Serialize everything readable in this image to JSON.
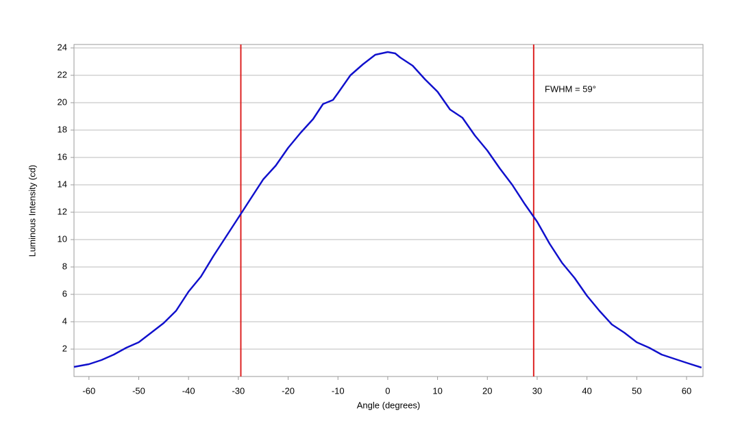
{
  "chart_data": {
    "type": "line",
    "xlabel": "Angle (degrees)",
    "ylabel": "Luminous Intensity (cd)",
    "annotation": "FWHM = 59°",
    "vlines": [
      -29.5,
      29.3
    ],
    "vline_color": "#dd2222",
    "x": [
      -63,
      -60,
      -57.5,
      -55,
      -52.5,
      -50,
      -47.5,
      -45,
      -42.5,
      -40,
      -37.5,
      -35,
      -32.5,
      -30,
      -27.5,
      -25,
      -22.5,
      -20,
      -17.5,
      -15,
      -13,
      -11,
      -10,
      -7.5,
      -5,
      -2.5,
      0,
      1.5,
      2.5,
      5,
      7.5,
      10,
      12.5,
      15,
      17.5,
      20,
      22.5,
      25,
      27.5,
      30,
      32.5,
      35,
      37.5,
      40,
      42.5,
      45,
      47.5,
      50,
      52.5,
      55,
      57.5,
      60,
      63
    ],
    "series": [
      {
        "color": "#1010cc",
        "values": [
          0.7,
          0.9,
          1.2,
          1.6,
          2.1,
          2.5,
          3.2,
          3.9,
          4.8,
          6.2,
          7.3,
          8.8,
          10.2,
          11.6,
          13.0,
          14.4,
          15.4,
          16.7,
          17.8,
          18.8,
          19.9,
          20.2,
          20.7,
          22.0,
          22.8,
          23.5,
          23.7,
          23.6,
          23.3,
          22.7,
          21.7,
          20.8,
          19.5,
          18.9,
          17.6,
          16.5,
          15.2,
          14.0,
          12.6,
          11.3,
          9.7,
          8.3,
          7.2,
          5.9,
          4.8,
          3.8,
          3.2,
          2.5,
          2.1,
          1.6,
          1.3,
          1.0,
          0.65
        ]
      }
    ],
    "xlim": [
      -63,
      63.3
    ],
    "ylim": [
      0,
      24.25
    ],
    "xticks": [
      -60,
      -50,
      -40,
      -30,
      -20,
      -10,
      0,
      10,
      20,
      30,
      40,
      50,
      60
    ],
    "yticks": [
      2,
      4,
      6,
      8,
      10,
      12,
      14,
      16,
      18,
      20,
      22,
      24
    ],
    "grid": true
  }
}
